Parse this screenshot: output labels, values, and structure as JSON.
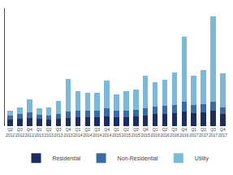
{
  "chart_data": {
    "type": "bar",
    "stacked": true,
    "categories": [
      "Q2\n2012",
      "Q3\n2012",
      "Q4\n2012",
      "Q1\n2013",
      "Q2\n2013",
      "Q3\n2013",
      "Q4\n2013",
      "Q1\n2014",
      "Q2\n2014",
      "Q3\n2014",
      "Q4\n2014",
      "Q1\n2015",
      "Q2\n2015",
      "Q3\n2015",
      "Q4\n2015",
      "Q1\n2016",
      "Q2\n2016",
      "Q3\n2016",
      "Q4\n2016",
      "Q1\n2017",
      "Q2\n2017",
      "Q3\n2017",
      "Q4\n2017"
    ],
    "series": [
      {
        "name": "Residential",
        "color": "#1c2d5e",
        "values": [
          0.08,
          0.09,
          0.1,
          0.09,
          0.08,
          0.09,
          0.1,
          0.11,
          0.11,
          0.11,
          0.12,
          0.11,
          0.11,
          0.12,
          0.13,
          0.15,
          0.15,
          0.16,
          0.18,
          0.16,
          0.17,
          0.19,
          0.15
        ]
      },
      {
        "name": "Non-Residential",
        "color": "#3b6ba5",
        "values": [
          0.05,
          0.06,
          0.07,
          0.05,
          0.05,
          0.06,
          0.08,
          0.08,
          0.08,
          0.08,
          0.1,
          0.08,
          0.08,
          0.08,
          0.09,
          0.09,
          0.1,
          0.1,
          0.12,
          0.1,
          0.1,
          0.11,
          0.08
        ]
      },
      {
        "name": "Utility",
        "color": "#7cb8d8",
        "values": [
          0.06,
          0.08,
          0.16,
          0.08,
          0.1,
          0.16,
          0.4,
          0.24,
          0.22,
          0.22,
          0.34,
          0.2,
          0.24,
          0.25,
          0.4,
          0.3,
          0.32,
          0.4,
          0.8,
          0.36,
          0.42,
          1.05,
          0.42
        ]
      }
    ],
    "ylim": [
      0,
      1.45
    ],
    "grid": false,
    "legend": "bottom",
    "tick_labels": "x"
  }
}
